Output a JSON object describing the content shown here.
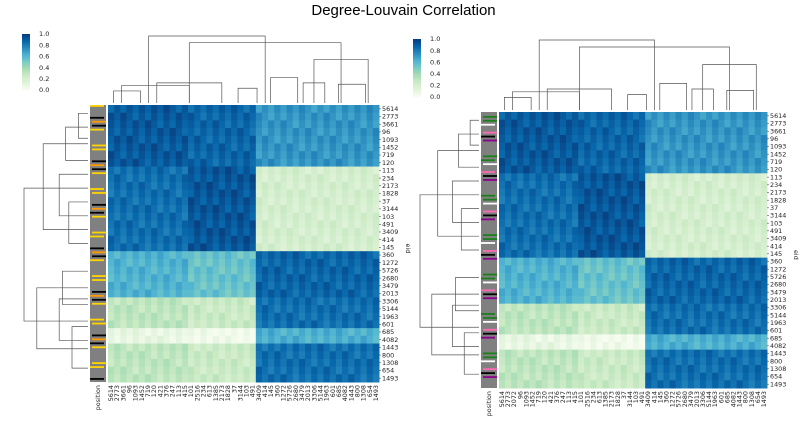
{
  "title": "Degree-Louvain Correlation",
  "colorbar_ticks": [
    "1.0",
    "0.8",
    "0.6",
    "0.4",
    "0.2",
    "0.0"
  ],
  "colors": {
    "low": "#f7fcf0",
    "mid": "#7ccfc3",
    "high": "#08589e",
    "position_gray": "#808080"
  },
  "chart_data": [
    {
      "type": "heatmap",
      "title": "",
      "colormap": "GnBu",
      "vmin": 0.0,
      "vmax": 1.0,
      "column_labels": [
        "position",
        "5614",
        "2773",
        "3661",
        "96",
        "1093",
        "1452",
        "719",
        "120",
        "421",
        "376",
        "247",
        "113",
        "415",
        "101",
        "2516",
        "234",
        "613",
        "1385",
        "2173",
        "1828",
        "37",
        "3144",
        "103",
        "491",
        "3409",
        "414",
        "145",
        "360",
        "1272",
        "5726",
        "2680",
        "3479",
        "2013",
        "3306",
        "5144",
        "1963",
        "601",
        "685",
        "4082",
        "1443",
        "800",
        "1308",
        "654",
        "1493"
      ],
      "row_labels": [
        "5614",
        "2773",
        "3661",
        "96",
        "1093",
        "1452",
        "719",
        "120",
        "113",
        "234",
        "2173",
        "1828",
        "37",
        "3144",
        "103",
        "491",
        "3409",
        "414",
        "145",
        "360",
        "1272",
        "5726",
        "2680",
        "3479",
        "2013",
        "3306",
        "5144",
        "1963",
        "601",
        "685",
        "4082",
        "1443",
        "800",
        "1308",
        "654",
        "1493"
      ],
      "ylabel": "eid",
      "xlabel": "position"
    },
    {
      "type": "heatmap",
      "title": "",
      "colormap": "GnBu",
      "vmin": 0.0,
      "vmax": 1.0,
      "column_labels": [
        "position",
        "5614",
        "2773",
        "2072",
        "96",
        "1093",
        "1452",
        "719",
        "120",
        "421",
        "376",
        "247",
        "113",
        "415",
        "101",
        "2516",
        "234",
        "613",
        "1385",
        "2173",
        "1828",
        "37",
        "3144",
        "103",
        "491",
        "3409",
        "414",
        "145",
        "360",
        "1272",
        "5726",
        "2680",
        "3479",
        "2013",
        "3306",
        "5144",
        "1963",
        "601",
        "685",
        "4082",
        "1443",
        "800",
        "1308",
        "654",
        "1493"
      ],
      "row_labels": [
        "5614",
        "2773",
        "3661",
        "96",
        "1093",
        "1452",
        "719",
        "120",
        "113",
        "234",
        "2173",
        "1828",
        "37",
        "3144",
        "103",
        "491",
        "3409",
        "414",
        "145",
        "360",
        "1272",
        "5726",
        "2680",
        "3479",
        "2013",
        "3306",
        "5144",
        "1963",
        "601",
        "685",
        "4082",
        "1443",
        "800",
        "1308",
        "654",
        "1493"
      ],
      "ylabel": "eid",
      "xlabel": "position"
    }
  ]
}
